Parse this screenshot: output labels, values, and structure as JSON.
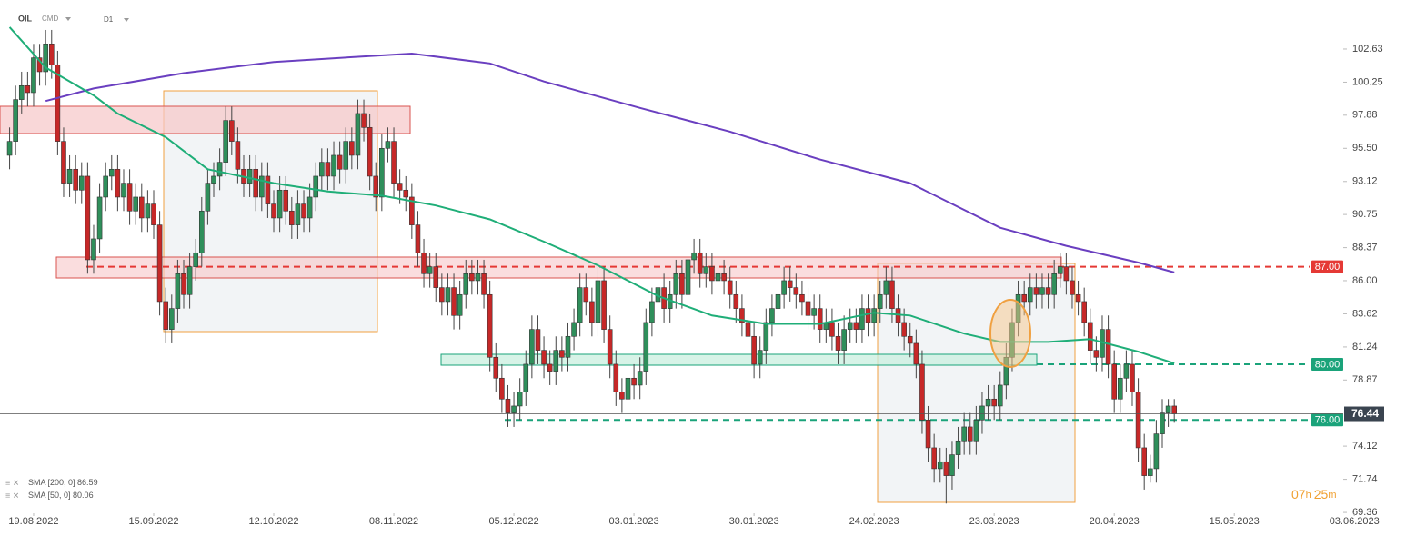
{
  "chart_data": {
    "type": "candlestick",
    "symbol": "OIL",
    "market": "CMD",
    "interval": "D1",
    "up_color": "#2f8f5b",
    "down_color": "#c62828",
    "candles": [
      [
        95,
        97,
        94,
        96
      ],
      [
        96,
        100,
        95,
        99
      ],
      [
        99,
        101,
        98,
        100
      ],
      [
        100,
        101,
        98.5,
        99.5
      ],
      [
        99.5,
        103,
        98.5,
        102
      ],
      [
        102,
        103,
        100,
        101
      ],
      [
        101,
        104,
        100,
        103
      ],
      [
        103,
        104,
        100.5,
        101.5
      ],
      [
        101.5,
        102.5,
        95,
        96
      ],
      [
        96,
        97,
        92,
        93
      ],
      [
        93,
        95,
        92,
        94
      ],
      [
        94,
        95,
        91.5,
        92.5
      ],
      [
        92.5,
        94.5,
        91.5,
        93.5
      ],
      [
        93.5,
        94.5,
        86.5,
        87.5
      ],
      [
        87.5,
        90,
        86.5,
        89
      ],
      [
        89,
        93,
        88,
        92
      ],
      [
        92,
        94.5,
        91,
        93.5
      ],
      [
        93.5,
        95,
        92.5,
        94
      ],
      [
        94,
        95,
        91,
        92
      ],
      [
        92,
        94,
        91,
        93
      ],
      [
        93,
        94,
        90,
        91
      ],
      [
        91,
        93,
        90,
        92
      ],
      [
        92,
        93,
        89.5,
        90.5
      ],
      [
        90.5,
        92.5,
        89.5,
        91.5
      ],
      [
        91.5,
        92.5,
        89,
        90
      ],
      [
        90,
        91,
        83.5,
        84.5
      ],
      [
        84.5,
        85.5,
        81.5,
        82.5
      ],
      [
        82.5,
        85,
        81.5,
        84
      ],
      [
        84,
        87.5,
        83,
        86.5
      ],
      [
        86.5,
        87.5,
        84,
        85
      ],
      [
        85,
        88,
        84,
        87
      ],
      [
        87,
        89,
        86,
        88
      ],
      [
        88,
        92,
        87,
        91
      ],
      [
        91,
        94,
        90,
        93
      ],
      [
        93,
        94.5,
        92,
        93.5
      ],
      [
        93.5,
        95.5,
        92.5,
        94.5
      ],
      [
        94.5,
        98.5,
        93.5,
        97.5
      ],
      [
        97.5,
        98.5,
        95,
        96
      ],
      [
        96,
        97,
        93,
        94
      ],
      [
        94,
        95,
        92,
        93
      ],
      [
        93,
        95,
        92,
        94
      ],
      [
        94,
        95,
        91,
        92
      ],
      [
        92,
        94.5,
        91,
        93.5
      ],
      [
        93.5,
        94.5,
        90.5,
        91.5
      ],
      [
        91.5,
        92.5,
        89.5,
        90.5
      ],
      [
        90.5,
        93.5,
        89.5,
        92.5
      ],
      [
        92.5,
        93.5,
        90,
        91
      ],
      [
        91,
        92,
        89,
        90
      ],
      [
        90,
        92.5,
        89,
        91.5
      ],
      [
        91.5,
        92.5,
        89.5,
        90.5
      ],
      [
        90.5,
        93,
        89.5,
        92
      ],
      [
        92,
        94.5,
        91,
        93.5
      ],
      [
        93.5,
        95.5,
        92.5,
        94.5
      ],
      [
        94.5,
        95.5,
        92.5,
        93.5
      ],
      [
        93.5,
        96,
        92.5,
        95
      ],
      [
        95,
        96,
        93,
        94
      ],
      [
        94,
        97,
        93,
        96
      ],
      [
        96,
        97,
        94,
        95
      ],
      [
        95,
        99,
        94,
        98
      ],
      [
        98,
        99,
        96,
        97
      ],
      [
        97,
        98,
        92.5,
        93.5
      ],
      [
        93.5,
        94.5,
        91,
        92
      ],
      [
        92,
        96.5,
        91,
        95.5
      ],
      [
        95.5,
        97,
        94.5,
        96
      ],
      [
        96,
        97,
        92,
        93
      ],
      [
        93,
        94,
        91.5,
        92.5
      ],
      [
        92.5,
        93.5,
        91,
        92
      ],
      [
        92,
        93,
        89,
        90
      ],
      [
        90,
        91,
        87,
        88
      ],
      [
        88,
        89,
        85.5,
        86.5
      ],
      [
        86.5,
        88,
        85.5,
        87
      ],
      [
        87,
        88,
        84.5,
        85.5
      ],
      [
        85.5,
        86.5,
        83.5,
        84.5
      ],
      [
        84.5,
        86.5,
        83.5,
        85.5
      ],
      [
        85.5,
        86.5,
        82.5,
        83.5
      ],
      [
        83.5,
        86,
        82.5,
        85
      ],
      [
        85,
        87.5,
        84,
        86.5
      ],
      [
        86.5,
        87.5,
        85,
        86
      ],
      [
        86,
        87.5,
        85,
        86.5
      ],
      [
        86.5,
        87.5,
        84,
        85
      ],
      [
        85,
        86,
        79.5,
        80.5
      ],
      [
        80.5,
        81.5,
        78,
        79
      ],
      [
        79,
        80,
        76.5,
        77.5
      ],
      [
        77.5,
        78.5,
        75.5,
        76.5
      ],
      [
        76.5,
        78,
        75.5,
        77
      ],
      [
        77,
        79,
        76,
        78
      ],
      [
        78,
        81,
        77,
        80
      ],
      [
        80,
        83.5,
        79,
        82.5
      ],
      [
        82.5,
        83.5,
        80,
        81
      ],
      [
        81,
        82,
        79,
        80
      ],
      [
        80,
        81,
        78.5,
        79.5
      ],
      [
        79.5,
        82,
        78.5,
        81
      ],
      [
        81,
        82,
        79.5,
        80.5
      ],
      [
        80.5,
        83,
        79.5,
        82
      ],
      [
        82,
        84,
        81,
        83
      ],
      [
        83,
        86.5,
        82,
        85.5
      ],
      [
        85.5,
        86.5,
        83.5,
        84.5
      ],
      [
        84.5,
        85.5,
        82,
        83
      ],
      [
        83,
        87,
        82,
        86
      ],
      [
        86,
        87,
        81.5,
        82.5
      ],
      [
        82.5,
        83.5,
        79,
        80
      ],
      [
        80,
        81,
        77,
        78
      ],
      [
        78,
        79,
        76.5,
        77.5
      ],
      [
        77.5,
        80,
        76.5,
        79
      ],
      [
        79,
        80,
        77.5,
        78.5
      ],
      [
        78.5,
        80.5,
        77.5,
        79.5
      ],
      [
        79.5,
        84,
        78.5,
        83
      ],
      [
        83,
        85.5,
        82,
        84.5
      ],
      [
        84.5,
        86.5,
        83.5,
        85.5
      ],
      [
        85.5,
        86.5,
        83,
        84
      ],
      [
        84,
        86,
        83,
        85
      ],
      [
        85,
        87.5,
        84,
        86.5
      ],
      [
        86.5,
        87.5,
        84,
        85
      ],
      [
        85,
        88.5,
        84,
        87.5
      ],
      [
        87.5,
        89,
        86.5,
        88
      ],
      [
        88,
        89,
        85.5,
        86.5
      ],
      [
        86.5,
        88,
        85.5,
        87
      ],
      [
        87,
        88,
        85,
        86
      ],
      [
        86,
        87.5,
        85,
        86.5
      ],
      [
        86.5,
        87.5,
        85,
        86
      ],
      [
        86,
        87,
        84,
        85
      ],
      [
        85,
        86,
        83,
        84
      ],
      [
        84,
        85,
        82,
        83
      ],
      [
        83,
        84,
        81,
        82
      ],
      [
        82,
        83,
        79,
        80
      ],
      [
        80,
        82,
        79,
        81
      ],
      [
        81,
        84,
        80,
        83
      ],
      [
        83,
        85,
        82,
        84
      ],
      [
        84,
        86,
        83,
        85
      ],
      [
        85,
        87,
        84,
        86
      ],
      [
        86,
        87,
        84.5,
        85.5
      ],
      [
        85.5,
        86.5,
        84,
        85
      ],
      [
        85,
        86,
        83.5,
        84.5
      ],
      [
        84.5,
        85.5,
        82.5,
        83.5
      ],
      [
        83.5,
        85,
        82.5,
        84
      ],
      [
        84,
        85,
        81.5,
        82.5
      ],
      [
        82.5,
        84,
        81.5,
        83
      ],
      [
        83,
        84,
        81,
        82
      ],
      [
        82,
        83,
        80,
        81
      ],
      [
        81,
        83.5,
        80,
        82.5
      ],
      [
        82.5,
        84,
        81.5,
        83
      ],
      [
        83,
        84,
        81.5,
        82.5
      ],
      [
        82.5,
        85,
        81.5,
        84
      ],
      [
        84,
        85,
        82,
        83
      ],
      [
        83,
        85,
        82,
        84
      ],
      [
        84,
        86,
        83,
        85
      ],
      [
        85,
        87,
        84,
        86
      ],
      [
        86,
        87,
        83,
        84
      ],
      [
        84,
        85,
        82,
        83
      ],
      [
        83,
        84,
        81,
        82
      ],
      [
        82,
        83,
        80.5,
        81.5
      ],
      [
        81.5,
        82.5,
        79,
        80
      ],
      [
        80,
        81,
        75,
        76
      ],
      [
        76,
        77,
        73,
        74
      ],
      [
        74,
        75,
        71.5,
        72.5
      ],
      [
        72.5,
        74,
        71.5,
        73
      ],
      [
        73,
        74,
        70,
        72
      ],
      [
        72,
        74.5,
        71,
        73.5
      ],
      [
        73.5,
        75.5,
        72.5,
        74.5
      ],
      [
        74.5,
        76.5,
        73.5,
        75.5
      ],
      [
        75.5,
        76.5,
        73.5,
        74.5
      ],
      [
        74.5,
        77,
        73.5,
        76
      ],
      [
        76,
        78,
        75,
        77
      ],
      [
        77,
        78.5,
        76,
        77.5
      ],
      [
        77.5,
        78.5,
        76,
        77
      ],
      [
        77,
        79.5,
        76,
        78.5
      ],
      [
        78.5,
        81.5,
        77.5,
        80.5
      ],
      [
        80.5,
        84,
        79.5,
        83
      ],
      [
        83,
        86,
        82,
        85
      ],
      [
        85,
        86,
        83.5,
        84.5
      ],
      [
        84.5,
        86.5,
        83.5,
        85.5
      ],
      [
        85.5,
        86.5,
        84,
        85
      ],
      [
        85,
        86.5,
        84,
        85.5
      ],
      [
        85.5,
        86.5,
        84,
        85
      ],
      [
        85,
        87.5,
        84,
        86.5
      ],
      [
        86.5,
        88,
        85.5,
        87
      ],
      [
        87,
        88,
        85,
        86
      ],
      [
        86,
        87,
        84,
        85
      ],
      [
        85,
        86,
        83.5,
        84.5
      ],
      [
        84.5,
        85.5,
        82,
        83
      ],
      [
        83,
        84,
        80,
        81
      ],
      [
        81,
        82,
        79.5,
        80.5
      ],
      [
        80.5,
        83.5,
        79.5,
        82.5
      ],
      [
        82.5,
        83.5,
        79,
        80
      ],
      [
        80,
        81,
        76.5,
        77.5
      ],
      [
        77.5,
        80,
        76.5,
        79
      ],
      [
        79,
        81,
        78,
        80
      ],
      [
        80,
        81,
        77,
        78
      ],
      [
        78,
        79,
        73,
        74
      ],
      [
        74,
        75,
        71,
        72
      ],
      [
        72,
        73.5,
        71.5,
        72.5
      ],
      [
        72.5,
        76,
        71.5,
        75
      ],
      [
        75,
        77.5,
        74,
        76.5
      ],
      [
        76.5,
        77.5,
        75.5,
        77
      ],
      [
        77,
        77.5,
        75.8,
        76.44
      ]
    ],
    "series": [
      {
        "name": "SMA [200, 0]",
        "color": "#6a3fc0",
        "x": [
          6,
          14,
          29,
          44,
          59,
          67,
          80,
          89,
          105,
          120,
          135,
          150,
          165,
          176,
          188,
          194
        ],
        "values": [
          98.9,
          99.8,
          100.9,
          101.7,
          102.1,
          102.3,
          101.6,
          100.3,
          98.4,
          96.7,
          94.7,
          93.0,
          89.8,
          88.5,
          87.3,
          86.59
        ]
      },
      {
        "name": "SMA [50, 0]",
        "color": "#1fae78",
        "x": [
          0,
          6,
          14,
          18,
          26,
          33,
          44,
          53,
          62,
          71,
          80,
          89,
          98,
          108,
          117,
          126,
          135,
          144,
          150,
          159,
          165,
          173,
          180,
          188,
          194
        ],
        "values": [
          104.2,
          101.3,
          99.3,
          98.0,
          96.3,
          94.0,
          93.0,
          92.4,
          92.1,
          91.4,
          90.4,
          88.8,
          87.1,
          84.9,
          83.5,
          82.9,
          82.9,
          83.7,
          83.5,
          82.2,
          81.6,
          81.6,
          81.8,
          80.9,
          80.06
        ]
      }
    ],
    "levels": [
      {
        "value": 87,
        "label": "87.00",
        "color": "#e53935"
      },
      {
        "value": 80,
        "label": "80.00",
        "color": "#1aa37a"
      },
      {
        "value": 76,
        "label": "76.00",
        "color": "#1aa37a"
      }
    ],
    "last_price": 76.44,
    "countdown": [
      "07",
      "h ",
      "25",
      "m"
    ],
    "xlim": [
      -1.6,
      232.6
    ],
    "ylim": [
      69.3,
      106.15
    ],
    "xticks": [
      {
        "value": 4,
        "label": "19.08.2022"
      },
      {
        "value": 24,
        "label": "15.09.2022"
      },
      {
        "value": 44,
        "label": "12.10.2022"
      },
      {
        "value": 64,
        "label": "08.11.2022"
      },
      {
        "value": 84,
        "label": "05.12.2022"
      },
      {
        "value": 104,
        "label": "03.01.2023"
      },
      {
        "value": 124,
        "label": "30.01.2023"
      },
      {
        "value": 144,
        "label": "24.02.2023"
      },
      {
        "value": 164,
        "label": "23.03.2023"
      },
      {
        "value": 184,
        "label": "20.04.2023"
      },
      {
        "value": 204,
        "label": "15.05.2023"
      },
      {
        "value": 224,
        "label": "03.06.2023"
      }
    ],
    "yticks": [
      102.63,
      100.25,
      97.88,
      {
        "value": 95.5,
        "label": "95.50"
      },
      93.12,
      90.75,
      88.37,
      {
        "value": 86,
        "label": "86.00"
      },
      83.62,
      81.24,
      78.87,
      74.12,
      71.74,
      69.36
    ]
  }
}
